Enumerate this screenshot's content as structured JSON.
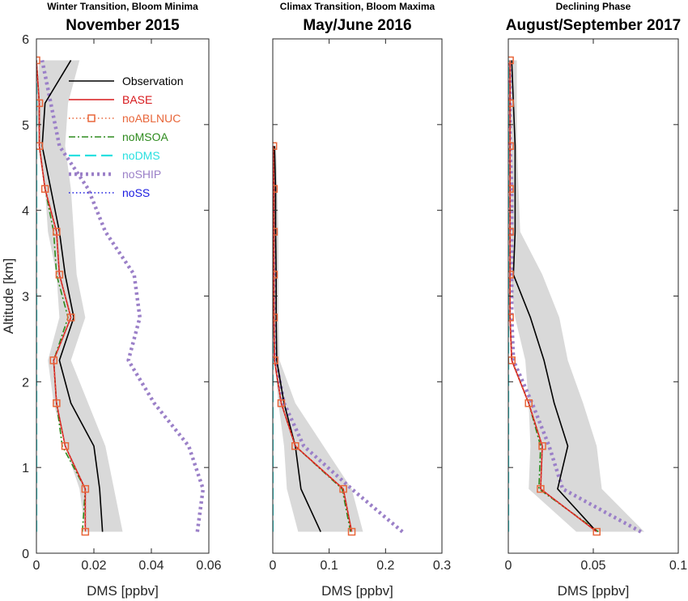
{
  "chart_data": [
    {
      "type": "line",
      "supertitle": "Winter Transition, Bloom Minima",
      "title": "November 2015",
      "xlabel": "DMS [ppbv]",
      "ylabel": "Altitude [km]",
      "xlim": [
        0,
        0.06
      ],
      "ylim": [
        0,
        6
      ],
      "xticks": [
        0,
        0.02,
        0.04,
        0.06
      ],
      "xtick_labels": [
        "0",
        "0.02",
        "0.04",
        "0.06"
      ],
      "yticks": [
        0,
        1,
        2,
        3,
        4,
        5,
        6
      ],
      "ytick_labels": [
        "0",
        "1",
        "2",
        "3",
        "4",
        "5",
        "6"
      ],
      "altitudes": [
        0.25,
        0.75,
        1.25,
        1.75,
        2.25,
        2.75,
        3.25,
        3.75,
        4.25,
        4.75,
        5.25,
        5.75
      ],
      "observation_range": {
        "low": [
          0.017,
          0.015,
          0.01,
          0.006,
          0.004,
          0.008,
          0.007,
          0.004,
          0.003,
          0.001,
          0.0,
          0.001
        ],
        "high": [
          0.03,
          0.027,
          0.024,
          0.018,
          0.012,
          0.017,
          0.014,
          0.013,
          0.012,
          0.01,
          0.011,
          0.015
        ]
      },
      "series": [
        {
          "name": "Observation",
          "values": [
            0.023,
            0.022,
            0.02,
            0.012,
            0.008,
            0.013,
            0.01,
            0.008,
            0.005,
            0.002,
            0.003,
            0.012
          ]
        },
        {
          "name": "BASE",
          "values": [
            0.017,
            0.017,
            0.01,
            0.007,
            0.006,
            0.012,
            0.008,
            0.007,
            0.003,
            0.001,
            0.001,
            0.0
          ]
        },
        {
          "name": "noABLNUC",
          "values": [
            0.017,
            0.017,
            0.01,
            0.007,
            0.006,
            0.012,
            0.008,
            0.007,
            0.003,
            0.001,
            0.001,
            0.0
          ]
        },
        {
          "name": "noMSOA",
          "values": [
            0.016,
            0.017,
            0.009,
            0.007,
            0.006,
            0.011,
            0.007,
            0.006,
            0.003,
            0.001,
            0.001,
            0.0
          ]
        },
        {
          "name": "noDMS",
          "values": [
            0.0,
            0.0,
            0.0,
            0.0,
            0.0,
            0.0,
            0.0,
            0.0,
            0.0,
            0.0,
            0.0,
            0.0
          ]
        },
        {
          "name": "noSHIP",
          "values": [
            0.056,
            0.058,
            0.053,
            0.041,
            0.032,
            0.036,
            0.034,
            0.024,
            0.018,
            0.008,
            0.005,
            0.002
          ]
        },
        {
          "name": "noSS",
          "values": [
            0.017,
            0.017,
            0.01,
            0.007,
            0.006,
            0.012,
            0.008,
            0.007,
            0.003,
            0.001,
            0.001,
            0.0
          ]
        }
      ]
    },
    {
      "type": "line",
      "supertitle": "Climax Transition, Bloom Maxima",
      "title": "May/June 2016",
      "xlabel": "DMS [ppbv]",
      "ylabel": "",
      "xlim": [
        0,
        0.3
      ],
      "ylim": [
        0,
        6
      ],
      "xticks": [
        0,
        0.1,
        0.2,
        0.3
      ],
      "xtick_labels": [
        "0",
        "0.1",
        "0.2",
        "0.3"
      ],
      "yticks": [
        0,
        1,
        2,
        3,
        4,
        5,
        6
      ],
      "ytick_labels": [],
      "altitudes": [
        0.25,
        0.75,
        1.25,
        1.75,
        2.25,
        2.75,
        3.25,
        3.75,
        4.25,
        4.75
      ],
      "observation_range": {
        "low": [
          0.045,
          0.025,
          0.02,
          0.01,
          0.003,
          0.002,
          0.002,
          0.002,
          0.002,
          0.001
        ],
        "high": [
          0.16,
          0.14,
          0.09,
          0.04,
          0.012,
          0.01,
          0.01,
          0.01,
          0.008,
          0.006
        ]
      },
      "series": [
        {
          "name": "Observation",
          "values": [
            0.085,
            0.05,
            0.04,
            0.02,
            0.007,
            0.006,
            0.006,
            0.005,
            0.005,
            0.003
          ]
        },
        {
          "name": "BASE",
          "values": [
            0.14,
            0.125,
            0.04,
            0.015,
            0.003,
            0.002,
            0.002,
            0.002,
            0.002,
            0.001
          ]
        },
        {
          "name": "noABLNUC",
          "values": [
            0.14,
            0.125,
            0.04,
            0.015,
            0.003,
            0.002,
            0.002,
            0.002,
            0.002,
            0.001
          ]
        },
        {
          "name": "noMSOA",
          "values": [
            0.138,
            0.123,
            0.04,
            0.015,
            0.003,
            0.002,
            0.002,
            0.002,
            0.002,
            0.001
          ]
        },
        {
          "name": "noDMS",
          "values": [
            0.0,
            0.0,
            0.0,
            0.0,
            0.0,
            0.0,
            0.0,
            0.0,
            0.0,
            0.0
          ]
        },
        {
          "name": "noSHIP",
          "values": [
            0.23,
            0.14,
            0.055,
            0.02,
            0.005,
            0.003,
            0.003,
            0.003,
            0.002,
            0.001
          ]
        },
        {
          "name": "noSS",
          "values": [
            0.14,
            0.125,
            0.04,
            0.015,
            0.003,
            0.002,
            0.002,
            0.002,
            0.002,
            0.001
          ]
        }
      ]
    },
    {
      "type": "line",
      "supertitle": "Declining Phase",
      "title": "August/September 2017",
      "xlabel": "DMS [ppbv]",
      "ylabel": "",
      "xlim": [
        0,
        0.1
      ],
      "ylim": [
        0,
        6
      ],
      "xticks": [
        0,
        0.05,
        0.1
      ],
      "xtick_labels": [
        "0",
        "0.05",
        "0.1"
      ],
      "yticks": [
        0,
        1,
        2,
        3,
        4,
        5,
        6
      ],
      "ytick_labels": [],
      "altitudes": [
        0.25,
        0.75,
        1.25,
        1.75,
        2.25,
        2.75,
        3.25,
        3.75,
        4.25,
        4.75,
        5.25,
        5.75
      ],
      "observation_range": {
        "low": [
          0.04,
          0.012,
          0.013,
          0.012,
          0.01,
          0.004,
          0.001,
          0.001,
          0.001,
          0.001,
          0.001,
          0.001
        ],
        "high": [
          0.08,
          0.055,
          0.052,
          0.044,
          0.035,
          0.03,
          0.02,
          0.007,
          0.006,
          0.005,
          0.005,
          0.005
        ]
      },
      "series": [
        {
          "name": "Observation",
          "values": [
            0.052,
            0.029,
            0.035,
            0.027,
            0.021,
            0.013,
            0.003,
            0.004,
            0.004,
            0.004,
            0.003,
            0.002
          ]
        },
        {
          "name": "BASE",
          "values": [
            0.052,
            0.019,
            0.02,
            0.012,
            0.002,
            0.001,
            0.001,
            0.001,
            0.001,
            0.001,
            0.001,
            0.001
          ]
        },
        {
          "name": "noABLNUC",
          "values": [
            0.052,
            0.019,
            0.02,
            0.012,
            0.002,
            0.001,
            0.001,
            0.001,
            0.001,
            0.001,
            0.001,
            0.001
          ]
        },
        {
          "name": "noMSOA",
          "values": [
            0.053,
            0.018,
            0.019,
            0.012,
            0.002,
            0.001,
            0.001,
            0.001,
            0.001,
            0.001,
            0.001,
            0.001
          ]
        },
        {
          "name": "noDMS",
          "values": [
            0.0,
            0.0,
            0.0,
            0.0,
            0.0,
            0.0,
            0.0,
            0.0,
            0.0,
            0.0,
            0.0,
            0.0
          ]
        },
        {
          "name": "noSHIP",
          "values": [
            0.078,
            0.032,
            0.024,
            0.014,
            0.003,
            0.002,
            0.002,
            0.002,
            0.002,
            0.001,
            0.001,
            0.001
          ]
        },
        {
          "name": "noSS",
          "values": [
            0.052,
            0.019,
            0.02,
            0.012,
            0.002,
            0.001,
            0.001,
            0.001,
            0.001,
            0.001,
            0.001,
            0.001
          ]
        }
      ]
    }
  ],
  "legend": {
    "placement": "top-left of first panel",
    "entries": [
      "Observation",
      "BASE",
      "noABLNUC",
      "noMSOA",
      "noDMS",
      "noSHIP",
      "noSS"
    ]
  },
  "styles": {
    "Observation": {
      "color": "#000000",
      "dash": "solid",
      "marker": "none"
    },
    "BASE": {
      "color": "#d7191c",
      "dash": "solid",
      "marker": "none"
    },
    "noABLNUC": {
      "color": "#e8663a",
      "dash": "dotted",
      "marker": "square"
    },
    "noMSOA": {
      "color": "#2e8b1e",
      "dash": "dashdot",
      "marker": "none"
    },
    "noDMS": {
      "color": "#29e0e0",
      "dash": "dashed",
      "marker": "none"
    },
    "noSHIP": {
      "color": "#9b80c8",
      "dash": "dotted-thick",
      "marker": "none"
    },
    "noSS": {
      "color": "#1a1ae0",
      "dash": "dotted",
      "marker": "none"
    },
    "observation_range": {
      "color": "#d9d9d9"
    },
    "legend_text_colors": {
      "Observation": "#000000",
      "BASE": "#d7191c",
      "noABLNUC": "#e8663a",
      "noMSOA": "#2e8b1e",
      "noDMS": "#29e0e0",
      "noSHIP": "#9b80c8",
      "noSS": "#1a1ae0"
    }
  }
}
